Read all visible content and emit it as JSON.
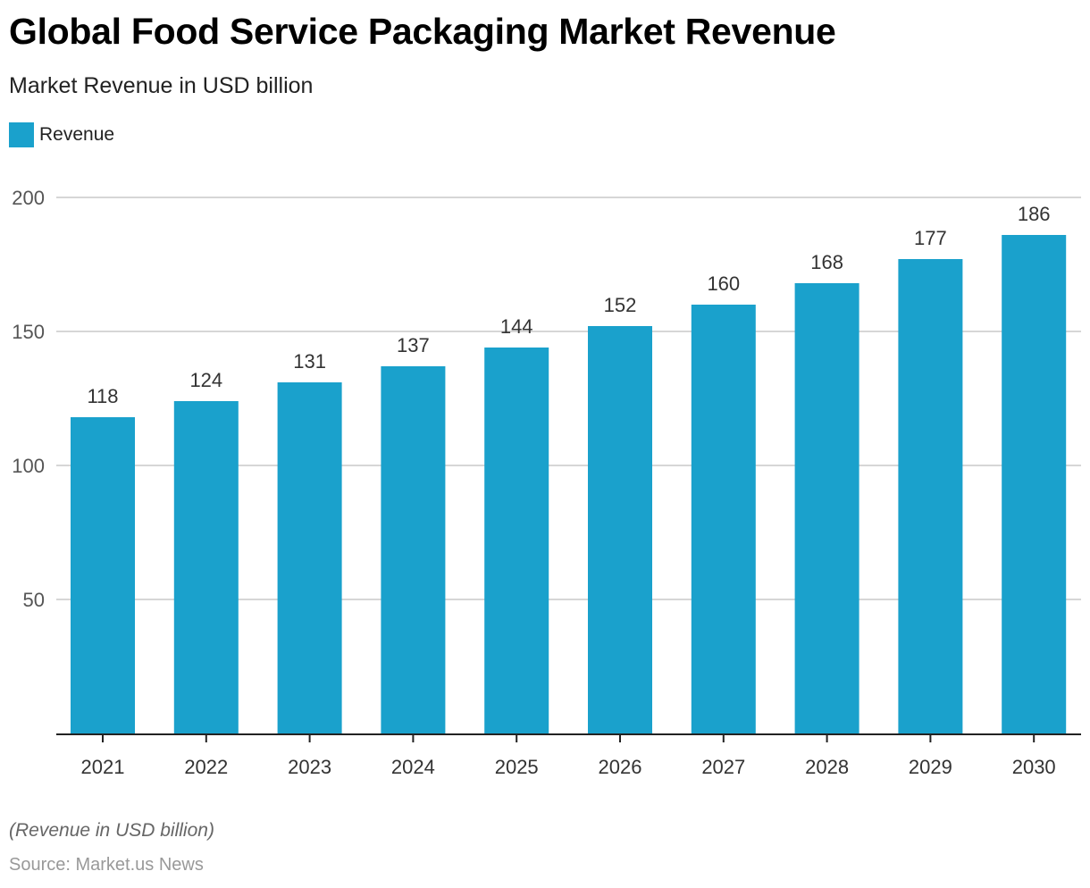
{
  "title": "Global Food Service Packaging Market Revenue",
  "subtitle": "Market Revenue in USD billion",
  "legend": {
    "label": "Revenue",
    "color": "#1aa1cc"
  },
  "note": "(Revenue in USD billion)",
  "source": "Source: Market.us News",
  "chart_data": {
    "type": "bar",
    "title": "Global Food Service Packaging Market Revenue",
    "subtitle": "Market Revenue in USD billion",
    "xlabel": "",
    "ylabel": "",
    "categories": [
      "2021",
      "2022",
      "2023",
      "2024",
      "2025",
      "2026",
      "2027",
      "2028",
      "2029",
      "2030"
    ],
    "series": [
      {
        "name": "Revenue",
        "color": "#1aa1cc",
        "values": [
          118,
          124,
          131,
          137,
          144,
          152,
          160,
          168,
          177,
          186
        ]
      }
    ],
    "ylim": [
      0,
      200
    ],
    "yticks": [
      50,
      100,
      150,
      200
    ],
    "grid": true,
    "legend_position": "top-left",
    "data_labels": true
  }
}
